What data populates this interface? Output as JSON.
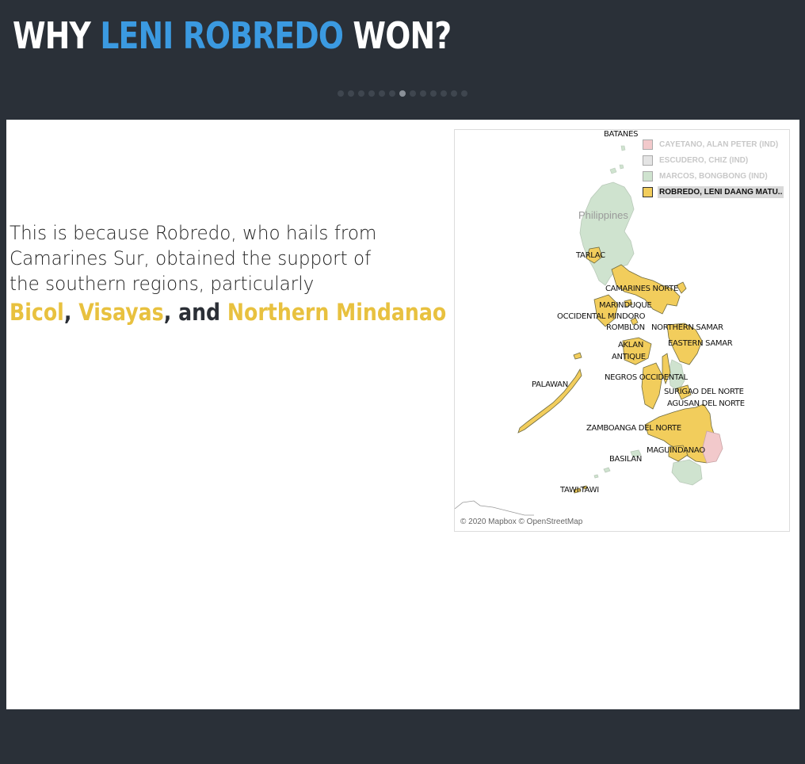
{
  "header": {
    "title_prefix": "WHY ",
    "title_accent": "LENI ROBREDO",
    "title_suffix": " WON?"
  },
  "pager": {
    "count": 13,
    "active_index": 6
  },
  "text": {
    "line1": "This is because Robredo, who hails from",
    "line2": "Camarines Sur, obtained the support of",
    "line3": "the southern regions, particularly",
    "regions": [
      "Bicol",
      "Visayas",
      "Northern Mindanao"
    ],
    "sep1": ", ",
    "sep2": ", and "
  },
  "map": {
    "country_label": "Philippines",
    "attribution": "© 2020 Mapbox © OpenStreetMap",
    "legend": [
      {
        "label": "CAYETANO, ALAN PETER (IND)",
        "color": "#f2c9cb",
        "selected": false
      },
      {
        "label": "ESCUDERO, CHIZ (IND)",
        "color": "#e4e4e4",
        "selected": false
      },
      {
        "label": "MARCOS, BONGBONG (IND)",
        "color": "#cfe3cf",
        "selected": false
      },
      {
        "label": "ROBREDO, LENI DAANG MATU..",
        "color": "#f2cd5c",
        "selected": true
      }
    ],
    "province_labels": [
      "BATANES",
      "TARLAC",
      "CAMARINES NORTE",
      "MARINDUQUE",
      "OCCIDENTAL MINDORO",
      "ROMBLON",
      "NORTHERN SAMAR",
      "AKLAN",
      "EASTERN SAMAR",
      "ANTIQUE",
      "NEGROS OCCIDENTAL",
      "PALAWAN",
      "SURIGAO DEL NORTE",
      "AGUSAN DEL NORTE",
      "ZAMBOANGA DEL NORTE",
      "MAGUINDANAO",
      "BASILAN",
      "TAWI-TAWI"
    ],
    "colors": {
      "robredo": "#f2cd5c",
      "marcos": "#cfe3cf",
      "cayetano": "#f2c9cb",
      "outline": "#6e6a40"
    }
  }
}
